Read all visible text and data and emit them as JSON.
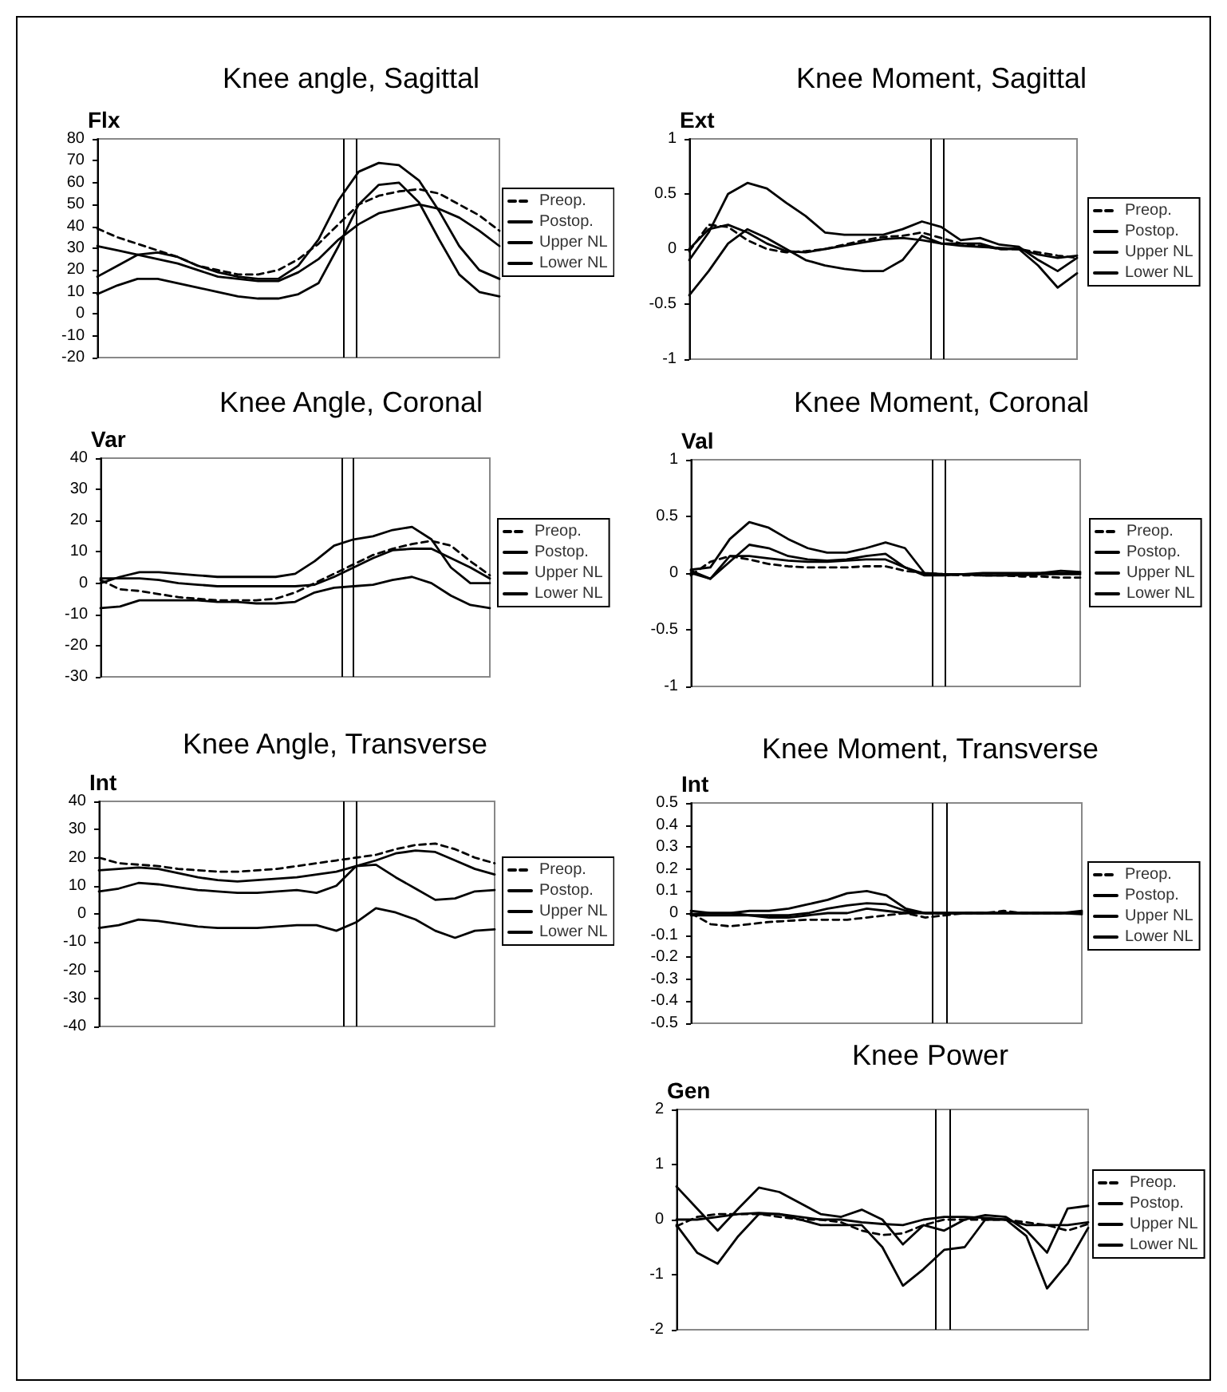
{
  "chart_data": [
    {
      "type": "line",
      "title": "Knee angle, Sagittal",
      "ylabel": "Flx",
      "categories": [
        null,
        null,
        null,
        null,
        null,
        null,
        null,
        null,
        null,
        null,
        null,
        null,
        null,
        null,
        null,
        null,
        null,
        null,
        null,
        null,
        null
      ],
      "ylim": [
        -20,
        80
      ],
      "yticks": [
        -20,
        -10,
        0,
        10,
        20,
        30,
        40,
        50,
        60,
        70,
        80
      ],
      "grid": false,
      "legend": "right",
      "tick_labels": "y",
      "marker": "none",
      "series": [
        {
          "name": "Preop.",
          "color": "#000000",
          "line_style": "dashed",
          "values": [
            39,
            35,
            32,
            29,
            26,
            22,
            20,
            18,
            18,
            20,
            25,
            32,
            41,
            50,
            54,
            56,
            57,
            55,
            50,
            45,
            38
          ]
        },
        {
          "name": "Postop.",
          "color": "#000000",
          "line_style": "solid",
          "values": [
            31,
            29,
            27,
            25,
            23,
            20,
            17,
            16,
            15,
            15,
            19,
            25,
            34,
            41,
            46,
            48,
            50,
            48,
            44,
            38,
            31
          ]
        },
        {
          "name": "Upper NL",
          "color": "#000000",
          "line_style": "solid",
          "values": [
            17,
            22,
            27,
            28,
            26,
            22,
            19,
            17,
            16,
            16,
            22,
            34,
            52,
            65,
            69,
            68,
            61,
            47,
            31,
            20,
            16
          ]
        },
        {
          "name": "Lower NL",
          "color": "#000000",
          "line_style": "solid",
          "values": [
            9,
            13,
            16,
            16,
            14,
            12,
            10,
            8,
            7,
            7,
            9,
            14,
            31,
            50,
            59,
            60,
            51,
            34,
            18,
            10,
            8
          ]
        }
      ]
    },
    {
      "type": "line",
      "title": "Knee Moment, Sagittal",
      "ylabel": "Ext",
      "categories": [
        null,
        null,
        null,
        null,
        null,
        null,
        null,
        null,
        null,
        null,
        null,
        null,
        null,
        null,
        null,
        null,
        null,
        null,
        null,
        null,
        null
      ],
      "ylim": [
        -1,
        1
      ],
      "yticks": [
        -1,
        -0.5,
        0,
        0.5,
        1
      ],
      "grid": false,
      "legend": "right",
      "tick_labels": "y",
      "marker": "none",
      "series": [
        {
          "name": "Preop.",
          "color": "#000000",
          "line_style": "dashed",
          "values": [
            -0.02,
            0.22,
            0.2,
            0.08,
            0,
            -0.03,
            -0.02,
            0,
            0.04,
            0.08,
            0.11,
            0.12,
            0.15,
            0.1,
            0.05,
            0.03,
            0,
            0,
            -0.03,
            -0.06,
            -0.08
          ]
        },
        {
          "name": "Postop.",
          "color": "#000000",
          "line_style": "solid",
          "values": [
            0,
            0.18,
            0.22,
            0.15,
            0.05,
            -0.02,
            -0.03,
            0,
            0.03,
            0.06,
            0.09,
            0.1,
            0.08,
            0.05,
            0.03,
            0.02,
            0.01,
            0,
            -0.05,
            -0.08,
            -0.06
          ]
        },
        {
          "name": "Upper NL",
          "color": "#000000",
          "line_style": "solid",
          "values": [
            -0.1,
            0.15,
            0.5,
            0.6,
            0.55,
            0.42,
            0.3,
            0.15,
            0.13,
            0.13,
            0.13,
            0.18,
            0.25,
            0.2,
            0.08,
            0.1,
            0.04,
            0.02,
            -0.1,
            -0.2,
            -0.08
          ]
        },
        {
          "name": "Lower NL",
          "color": "#000000",
          "line_style": "solid",
          "values": [
            -0.42,
            -0.2,
            0.05,
            0.18,
            0.1,
            0,
            -0.1,
            -0.15,
            -0.18,
            -0.2,
            -0.2,
            -0.1,
            0.12,
            0.05,
            0.05,
            0.05,
            0,
            0,
            -0.15,
            -0.35,
            -0.22
          ]
        }
      ]
    },
    {
      "type": "line",
      "title": "Knee Angle, Coronal",
      "ylabel": "Var",
      "categories": [
        null,
        null,
        null,
        null,
        null,
        null,
        null,
        null,
        null,
        null,
        null,
        null,
        null,
        null,
        null,
        null,
        null,
        null,
        null,
        null,
        null
      ],
      "ylim": [
        -30,
        40
      ],
      "yticks": [
        -30,
        -20,
        -10,
        0,
        10,
        20,
        30,
        40
      ],
      "grid": false,
      "legend": "right",
      "tick_labels": "y",
      "marker": "none",
      "series": [
        {
          "name": "Preop.",
          "color": "#000000",
          "line_style": "dashed",
          "values": [
            1,
            -2,
            -2.5,
            -3.5,
            -4.5,
            -5,
            -5.5,
            -5.5,
            -5.5,
            -5,
            -3,
            0,
            3,
            6,
            9,
            11,
            12.5,
            13.5,
            12,
            7,
            2.5
          ]
        },
        {
          "name": "Postop.",
          "color": "#000000",
          "line_style": "solid",
          "values": [
            1.5,
            1.5,
            1.5,
            1,
            0,
            -0.5,
            -1,
            -1,
            -1,
            -1,
            -1,
            -0.5,
            2,
            5,
            8,
            10.5,
            11,
            11,
            8,
            5,
            1.5
          ]
        },
        {
          "name": "Upper NL",
          "color": "#000000",
          "line_style": "solid",
          "values": [
            0,
            2,
            3.5,
            3.5,
            3,
            2.5,
            2,
            2,
            2,
            2,
            3,
            7,
            12,
            14,
            15,
            17,
            18,
            14,
            5,
            0,
            0
          ]
        },
        {
          "name": "Lower NL",
          "color": "#000000",
          "line_style": "solid",
          "values": [
            -8,
            -7.5,
            -5.5,
            -5.5,
            -5.5,
            -5.5,
            -6,
            -6,
            -6.5,
            -6.5,
            -6,
            -3,
            -1.5,
            -1,
            -0.5,
            1,
            2,
            0,
            -4,
            -7,
            -8
          ]
        }
      ]
    },
    {
      "type": "line",
      "title": "Knee Moment, Coronal",
      "ylabel": "Val",
      "categories": [
        null,
        null,
        null,
        null,
        null,
        null,
        null,
        null,
        null,
        null,
        null,
        null,
        null,
        null,
        null,
        null,
        null,
        null,
        null,
        null,
        null
      ],
      "ylim": [
        -1,
        1
      ],
      "yticks": [
        -1,
        -0.5,
        0,
        0.5,
        1
      ],
      "grid": false,
      "legend": "right",
      "tick_labels": "y",
      "marker": "none",
      "series": [
        {
          "name": "Preop.",
          "color": "#000000",
          "line_style": "dashed",
          "values": [
            -0.02,
            0.1,
            0.15,
            0.12,
            0.08,
            0.06,
            0.05,
            0.05,
            0.05,
            0.06,
            0.06,
            0.02,
            0,
            -0.01,
            -0.02,
            -0.02,
            -0.02,
            -0.03,
            -0.03,
            -0.04,
            -0.04
          ]
        },
        {
          "name": "Postop.",
          "color": "#000000",
          "line_style": "solid",
          "values": [
            0,
            -0.05,
            0.15,
            0.15,
            0.13,
            0.11,
            0.1,
            0.1,
            0.11,
            0.12,
            0.12,
            0.05,
            -0.01,
            -0.01,
            -0.01,
            -0.02,
            -0.02,
            -0.02,
            -0.01,
            -0.01,
            -0.01
          ]
        },
        {
          "name": "Upper NL",
          "color": "#000000",
          "line_style": "solid",
          "values": [
            0.03,
            0.05,
            0.3,
            0.45,
            0.4,
            0.3,
            0.22,
            0.18,
            0.18,
            0.22,
            0.27,
            0.22,
            0,
            -0.01,
            -0.01,
            -0.02,
            -0.02,
            -0.01,
            0,
            0.02,
            0.01
          ]
        },
        {
          "name": "Lower NL",
          "color": "#000000",
          "line_style": "solid",
          "values": [
            0.02,
            -0.05,
            0.1,
            0.25,
            0.22,
            0.15,
            0.12,
            0.11,
            0.12,
            0.15,
            0.17,
            0.05,
            -0.02,
            -0.02,
            -0.01,
            0,
            0,
            0,
            0,
            0,
            0
          ]
        }
      ]
    },
    {
      "type": "line",
      "title": "Knee Angle, Transverse",
      "ylabel": "Int",
      "categories": [
        null,
        null,
        null,
        null,
        null,
        null,
        null,
        null,
        null,
        null,
        null,
        null,
        null,
        null,
        null,
        null,
        null,
        null,
        null,
        null,
        null
      ],
      "ylim": [
        -40,
        40
      ],
      "yticks": [
        -40,
        -30,
        -20,
        -10,
        0,
        10,
        20,
        30,
        40
      ],
      "grid": false,
      "legend": "right",
      "tick_labels": "y",
      "marker": "none",
      "series": [
        {
          "name": "Preop.",
          "color": "#000000",
          "line_style": "dashed",
          "values": [
            20,
            18,
            17.5,
            17,
            16,
            15.5,
            15,
            15,
            15.5,
            16,
            17,
            18,
            19,
            20,
            21,
            23,
            24.5,
            25,
            23,
            20,
            18
          ]
        },
        {
          "name": "Postop.",
          "color": "#000000",
          "line_style": "solid",
          "values": [
            15.5,
            16,
            16.5,
            16,
            14.5,
            13,
            12,
            11.5,
            12,
            12.5,
            13,
            14,
            15,
            17,
            19,
            21.5,
            22.5,
            22,
            19,
            16,
            14
          ]
        },
        {
          "name": "Upper NL",
          "color": "#000000",
          "line_style": "solid",
          "values": [
            8,
            9,
            11,
            10.5,
            9.5,
            8.5,
            8,
            7.5,
            7.5,
            8,
            8.5,
            7.5,
            10,
            17,
            17.5,
            13,
            9,
            5,
            5.5,
            8,
            8.5
          ]
        },
        {
          "name": "Lower NL",
          "color": "#000000",
          "line_style": "solid",
          "values": [
            -5,
            -4,
            -2,
            -2.5,
            -3.5,
            -4.5,
            -5,
            -5,
            -5,
            -4.5,
            -4,
            -4,
            -6,
            -3,
            2,
            0.5,
            -2,
            -6,
            -8.5,
            -6,
            -5.5
          ]
        }
      ]
    },
    {
      "type": "line",
      "title": "Knee Moment, Transverse",
      "ylabel": "Int",
      "categories": [
        null,
        null,
        null,
        null,
        null,
        null,
        null,
        null,
        null,
        null,
        null,
        null,
        null,
        null,
        null,
        null,
        null,
        null,
        null,
        null,
        null
      ],
      "ylim": [
        -0.5,
        0.5
      ],
      "yticks": [
        -0.5,
        -0.4,
        -0.3,
        -0.2,
        -0.1,
        0,
        0.1,
        0.2,
        0.3,
        0.4,
        0.5
      ],
      "grid": false,
      "legend": "right",
      "tick_labels": "y",
      "marker": "none",
      "series": [
        {
          "name": "Preop.",
          "color": "#000000",
          "line_style": "dashed",
          "values": [
            0,
            -0.05,
            -0.06,
            -0.05,
            -0.04,
            -0.035,
            -0.03,
            -0.03,
            -0.03,
            -0.02,
            -0.01,
            0,
            -0.02,
            -0.01,
            0,
            0,
            0.01,
            0,
            0,
            0,
            0
          ]
        },
        {
          "name": "Postop.",
          "color": "#000000",
          "line_style": "solid",
          "values": [
            0.01,
            0,
            0,
            -0.01,
            -0.01,
            -0.01,
            0,
            0.02,
            0.035,
            0.045,
            0.04,
            0.01,
            0,
            0,
            0,
            0,
            0,
            0,
            0,
            0,
            0.005
          ]
        },
        {
          "name": "Upper NL",
          "color": "#000000",
          "line_style": "solid",
          "values": [
            -0.005,
            0,
            0,
            0.01,
            0.01,
            0.02,
            0.04,
            0.06,
            0.09,
            0.1,
            0.08,
            0.02,
            0,
            0,
            0,
            0,
            0,
            0,
            0,
            0,
            0.01
          ]
        },
        {
          "name": "Lower NL",
          "color": "#000000",
          "line_style": "solid",
          "values": [
            -0.01,
            -0.01,
            -0.01,
            -0.01,
            -0.02,
            -0.02,
            -0.01,
            0,
            0,
            0.02,
            0.01,
            0,
            0,
            0,
            0,
            0,
            0,
            0,
            0,
            0,
            -0.005
          ]
        }
      ]
    },
    {
      "type": "line",
      "title": "Knee Power",
      "ylabel": "Gen",
      "categories": [
        null,
        null,
        null,
        null,
        null,
        null,
        null,
        null,
        null,
        null,
        null,
        null,
        null,
        null,
        null,
        null,
        null,
        null,
        null,
        null,
        null
      ],
      "ylim": [
        -2,
        2
      ],
      "yticks": [
        -2,
        -1,
        0,
        1,
        2
      ],
      "grid": false,
      "legend": "right",
      "tick_labels": "y",
      "marker": "none",
      "series": [
        {
          "name": "Preop.",
          "color": "#000000",
          "line_style": "dashed",
          "values": [
            -0.12,
            0.05,
            0.1,
            0.1,
            0.1,
            0.05,
            0,
            0,
            -0.05,
            -0.2,
            -0.28,
            -0.25,
            -0.1,
            0,
            0,
            0,
            0,
            -0.05,
            -0.1,
            -0.2,
            -0.08
          ]
        },
        {
          "name": "Postop.",
          "color": "#000000",
          "line_style": "solid",
          "values": [
            0,
            0,
            0.05,
            0.1,
            0.12,
            0.1,
            0.05,
            0,
            0,
            -0.05,
            -0.08,
            -0.1,
            0,
            0.05,
            0.05,
            0.03,
            0,
            -0.1,
            -0.1,
            -0.1,
            -0.05
          ]
        },
        {
          "name": "Upper NL",
          "color": "#000000",
          "line_style": "solid",
          "values": [
            0.6,
            0.2,
            -0.2,
            0.2,
            0.58,
            0.5,
            0.3,
            0.1,
            0.05,
            0.18,
            0,
            -0.45,
            -0.1,
            -0.2,
            0,
            0.08,
            0.05,
            -0.2,
            -0.6,
            0.2,
            0.25
          ]
        },
        {
          "name": "Lower NL",
          "color": "#000000",
          "line_style": "solid",
          "values": [
            -0.1,
            -0.6,
            -0.8,
            -0.3,
            0.1,
            0.1,
            0,
            -0.1,
            -0.1,
            -0.1,
            -0.5,
            -1.2,
            -0.9,
            -0.55,
            -0.5,
            0,
            0,
            -0.3,
            -1.25,
            -0.8,
            -0.15
          ]
        }
      ]
    }
  ]
}
